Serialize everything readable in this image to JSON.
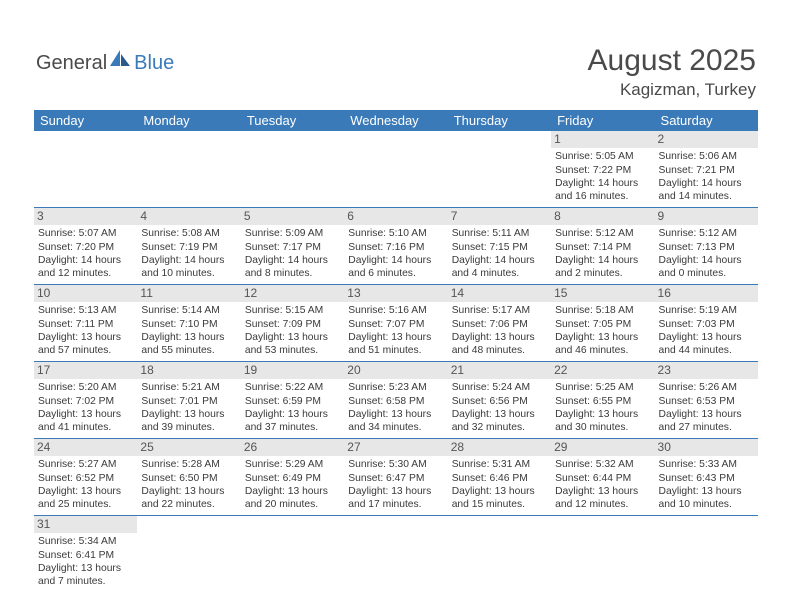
{
  "logo": {
    "text1": "General",
    "text2": "Blue"
  },
  "header": {
    "month": "August 2025",
    "location": "Kagizman, Turkey"
  },
  "colors": {
    "header_bg": "#3a7ab8",
    "daynum_bg": "#e7e7e7",
    "text": "#3a3a3a",
    "logo_gray": "#4a4a4a",
    "logo_blue": "#3a7ab8"
  },
  "day_names": [
    "Sunday",
    "Monday",
    "Tuesday",
    "Wednesday",
    "Thursday",
    "Friday",
    "Saturday"
  ],
  "weeks": [
    [
      {
        "day": "",
        "sunrise": "",
        "sunset": "",
        "daylight": ""
      },
      {
        "day": "",
        "sunrise": "",
        "sunset": "",
        "daylight": ""
      },
      {
        "day": "",
        "sunrise": "",
        "sunset": "",
        "daylight": ""
      },
      {
        "day": "",
        "sunrise": "",
        "sunset": "",
        "daylight": ""
      },
      {
        "day": "",
        "sunrise": "",
        "sunset": "",
        "daylight": ""
      },
      {
        "day": "1",
        "sunrise": "Sunrise: 5:05 AM",
        "sunset": "Sunset: 7:22 PM",
        "daylight": "Daylight: 14 hours and 16 minutes."
      },
      {
        "day": "2",
        "sunrise": "Sunrise: 5:06 AM",
        "sunset": "Sunset: 7:21 PM",
        "daylight": "Daylight: 14 hours and 14 minutes."
      }
    ],
    [
      {
        "day": "3",
        "sunrise": "Sunrise: 5:07 AM",
        "sunset": "Sunset: 7:20 PM",
        "daylight": "Daylight: 14 hours and 12 minutes."
      },
      {
        "day": "4",
        "sunrise": "Sunrise: 5:08 AM",
        "sunset": "Sunset: 7:19 PM",
        "daylight": "Daylight: 14 hours and 10 minutes."
      },
      {
        "day": "5",
        "sunrise": "Sunrise: 5:09 AM",
        "sunset": "Sunset: 7:17 PM",
        "daylight": "Daylight: 14 hours and 8 minutes."
      },
      {
        "day": "6",
        "sunrise": "Sunrise: 5:10 AM",
        "sunset": "Sunset: 7:16 PM",
        "daylight": "Daylight: 14 hours and 6 minutes."
      },
      {
        "day": "7",
        "sunrise": "Sunrise: 5:11 AM",
        "sunset": "Sunset: 7:15 PM",
        "daylight": "Daylight: 14 hours and 4 minutes."
      },
      {
        "day": "8",
        "sunrise": "Sunrise: 5:12 AM",
        "sunset": "Sunset: 7:14 PM",
        "daylight": "Daylight: 14 hours and 2 minutes."
      },
      {
        "day": "9",
        "sunrise": "Sunrise: 5:12 AM",
        "sunset": "Sunset: 7:13 PM",
        "daylight": "Daylight: 14 hours and 0 minutes."
      }
    ],
    [
      {
        "day": "10",
        "sunrise": "Sunrise: 5:13 AM",
        "sunset": "Sunset: 7:11 PM",
        "daylight": "Daylight: 13 hours and 57 minutes."
      },
      {
        "day": "11",
        "sunrise": "Sunrise: 5:14 AM",
        "sunset": "Sunset: 7:10 PM",
        "daylight": "Daylight: 13 hours and 55 minutes."
      },
      {
        "day": "12",
        "sunrise": "Sunrise: 5:15 AM",
        "sunset": "Sunset: 7:09 PM",
        "daylight": "Daylight: 13 hours and 53 minutes."
      },
      {
        "day": "13",
        "sunrise": "Sunrise: 5:16 AM",
        "sunset": "Sunset: 7:07 PM",
        "daylight": "Daylight: 13 hours and 51 minutes."
      },
      {
        "day": "14",
        "sunrise": "Sunrise: 5:17 AM",
        "sunset": "Sunset: 7:06 PM",
        "daylight": "Daylight: 13 hours and 48 minutes."
      },
      {
        "day": "15",
        "sunrise": "Sunrise: 5:18 AM",
        "sunset": "Sunset: 7:05 PM",
        "daylight": "Daylight: 13 hours and 46 minutes."
      },
      {
        "day": "16",
        "sunrise": "Sunrise: 5:19 AM",
        "sunset": "Sunset: 7:03 PM",
        "daylight": "Daylight: 13 hours and 44 minutes."
      }
    ],
    [
      {
        "day": "17",
        "sunrise": "Sunrise: 5:20 AM",
        "sunset": "Sunset: 7:02 PM",
        "daylight": "Daylight: 13 hours and 41 minutes."
      },
      {
        "day": "18",
        "sunrise": "Sunrise: 5:21 AM",
        "sunset": "Sunset: 7:01 PM",
        "daylight": "Daylight: 13 hours and 39 minutes."
      },
      {
        "day": "19",
        "sunrise": "Sunrise: 5:22 AM",
        "sunset": "Sunset: 6:59 PM",
        "daylight": "Daylight: 13 hours and 37 minutes."
      },
      {
        "day": "20",
        "sunrise": "Sunrise: 5:23 AM",
        "sunset": "Sunset: 6:58 PM",
        "daylight": "Daylight: 13 hours and 34 minutes."
      },
      {
        "day": "21",
        "sunrise": "Sunrise: 5:24 AM",
        "sunset": "Sunset: 6:56 PM",
        "daylight": "Daylight: 13 hours and 32 minutes."
      },
      {
        "day": "22",
        "sunrise": "Sunrise: 5:25 AM",
        "sunset": "Sunset: 6:55 PM",
        "daylight": "Daylight: 13 hours and 30 minutes."
      },
      {
        "day": "23",
        "sunrise": "Sunrise: 5:26 AM",
        "sunset": "Sunset: 6:53 PM",
        "daylight": "Daylight: 13 hours and 27 minutes."
      }
    ],
    [
      {
        "day": "24",
        "sunrise": "Sunrise: 5:27 AM",
        "sunset": "Sunset: 6:52 PM",
        "daylight": "Daylight: 13 hours and 25 minutes."
      },
      {
        "day": "25",
        "sunrise": "Sunrise: 5:28 AM",
        "sunset": "Sunset: 6:50 PM",
        "daylight": "Daylight: 13 hours and 22 minutes."
      },
      {
        "day": "26",
        "sunrise": "Sunrise: 5:29 AM",
        "sunset": "Sunset: 6:49 PM",
        "daylight": "Daylight: 13 hours and 20 minutes."
      },
      {
        "day": "27",
        "sunrise": "Sunrise: 5:30 AM",
        "sunset": "Sunset: 6:47 PM",
        "daylight": "Daylight: 13 hours and 17 minutes."
      },
      {
        "day": "28",
        "sunrise": "Sunrise: 5:31 AM",
        "sunset": "Sunset: 6:46 PM",
        "daylight": "Daylight: 13 hours and 15 minutes."
      },
      {
        "day": "29",
        "sunrise": "Sunrise: 5:32 AM",
        "sunset": "Sunset: 6:44 PM",
        "daylight": "Daylight: 13 hours and 12 minutes."
      },
      {
        "day": "30",
        "sunrise": "Sunrise: 5:33 AM",
        "sunset": "Sunset: 6:43 PM",
        "daylight": "Daylight: 13 hours and 10 minutes."
      }
    ],
    [
      {
        "day": "31",
        "sunrise": "Sunrise: 5:34 AM",
        "sunset": "Sunset: 6:41 PM",
        "daylight": "Daylight: 13 hours and 7 minutes."
      },
      {
        "day": "",
        "sunrise": "",
        "sunset": "",
        "daylight": ""
      },
      {
        "day": "",
        "sunrise": "",
        "sunset": "",
        "daylight": ""
      },
      {
        "day": "",
        "sunrise": "",
        "sunset": "",
        "daylight": ""
      },
      {
        "day": "",
        "sunrise": "",
        "sunset": "",
        "daylight": ""
      },
      {
        "day": "",
        "sunrise": "",
        "sunset": "",
        "daylight": ""
      },
      {
        "day": "",
        "sunrise": "",
        "sunset": "",
        "daylight": ""
      }
    ]
  ]
}
